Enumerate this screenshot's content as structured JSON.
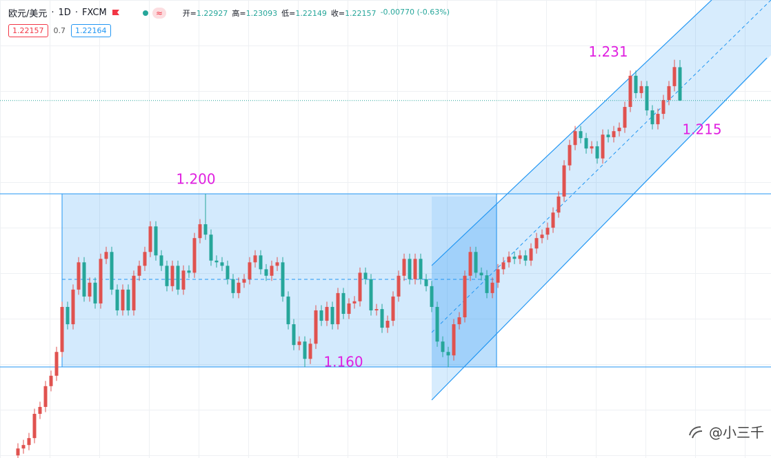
{
  "header": {
    "title": "欧元/美元",
    "interval": "1D",
    "source": "FXCM",
    "ohlc": [
      {
        "label": "开=",
        "value": "1.22927"
      },
      {
        "label": "高=",
        "value": "1.23093"
      },
      {
        "label": "低=",
        "value": "1.22149"
      },
      {
        "label": "收=",
        "value": "1.22157"
      }
    ],
    "change": "-0.00770 (-0.63%)",
    "sell": "1.22157",
    "spread": "0.7",
    "buy": "1.22164"
  },
  "watermark": "@小三千",
  "chart_data": {
    "type": "candlestick",
    "up_color": "#e0524f",
    "down_color": "#26a69a",
    "ylim": [
      1.139,
      1.2448
    ],
    "annotations": [
      {
        "value": 1.2,
        "label": "1.200"
      },
      {
        "value": 1.16,
        "label": "1.160"
      },
      {
        "value": 1.231,
        "label": "1.231"
      },
      {
        "value": 1.215,
        "label": "1.215"
      }
    ],
    "open": [
      1.1396,
      1.1412,
      1.142,
      1.1436,
      1.1492,
      1.1508,
      1.1556,
      1.158,
      1.1635,
      1.1739,
      1.1699,
      1.1779,
      1.1842,
      1.1763,
      1.1795,
      1.1747,
      1.185,
      1.1866,
      1.1779,
      1.1731,
      1.1779,
      1.1731,
      1.1811,
      1.1834,
      1.1866,
      1.1925,
      1.1858,
      1.1834,
      1.1787,
      1.1834,
      1.1779,
      1.1823,
      1.1818,
      1.1898,
      1.193,
      1.1906,
      1.1846,
      1.1842,
      1.1834,
      1.1803,
      1.1771,
      1.1795,
      1.1803,
      1.1842,
      1.1858,
      1.1826,
      1.1811,
      1.1834,
      1.1842,
      1.1763,
      1.1699,
      1.1651,
      1.1659,
      1.1619,
      1.1654,
      1.1731,
      1.1707,
      1.1739,
      1.1699,
      1.1771,
      1.1723,
      1.1747,
      1.1752,
      1.1818,
      1.1803,
      1.1731,
      1.1734,
      1.1691,
      1.1707,
      1.1763,
      1.1811,
      1.185,
      1.1803,
      1.185,
      1.1803,
      1.1787,
      1.1739,
      1.1659,
      1.1635,
      1.1627,
      1.1699,
      1.1715,
      1.1811,
      1.1866,
      1.1818,
      1.1812,
      1.1771,
      1.1795,
      1.1826,
      1.1842,
      1.1855,
      1.185,
      1.1858,
      1.1846,
      1.1874,
      1.1898,
      1.1906,
      1.1922,
      1.1957,
      1.1994,
      1.2066,
      1.2113,
      1.2145,
      1.2129,
      1.2105,
      1.211,
      1.2082,
      1.2137,
      1.2131,
      1.2145,
      1.2153,
      1.2201,
      1.2273,
      1.2233,
      1.2249,
      1.2193,
      1.2161,
      1.2185,
      1.2217,
      1.2249,
      1.22927
    ],
    "high": [
      1.1424,
      1.1432,
      1.1448,
      1.1504,
      1.152,
      1.1568,
      1.1592,
      1.1647,
      1.1751,
      1.1751,
      1.1791,
      1.1854,
      1.1854,
      1.1807,
      1.1807,
      1.1862,
      1.1878,
      1.1878,
      1.1791,
      1.1791,
      1.1791,
      1.1823,
      1.1846,
      1.1878,
      1.1937,
      1.1937,
      1.187,
      1.1846,
      1.1846,
      1.1846,
      1.1835,
      1.1835,
      1.191,
      1.1942,
      1.2,
      1.1918,
      1.1858,
      1.1854,
      1.1846,
      1.1815,
      1.1807,
      1.1815,
      1.1854,
      1.187,
      1.187,
      1.1838,
      1.1846,
      1.1854,
      1.1854,
      1.1775,
      1.1711,
      1.1671,
      1.1671,
      1.1666,
      1.1743,
      1.1743,
      1.1751,
      1.1751,
      1.1783,
      1.1783,
      1.1759,
      1.1764,
      1.183,
      1.183,
      1.1815,
      1.1746,
      1.1746,
      1.1719,
      1.1775,
      1.1823,
      1.1862,
      1.1862,
      1.1862,
      1.1862,
      1.1815,
      1.1799,
      1.1751,
      1.1671,
      1.1647,
      1.1711,
      1.1727,
      1.1823,
      1.1878,
      1.1878,
      1.183,
      1.1824,
      1.1807,
      1.1838,
      1.1854,
      1.1867,
      1.1867,
      1.187,
      1.187,
      1.1886,
      1.191,
      1.1918,
      1.1934,
      1.1969,
      1.2006,
      1.2078,
      1.2125,
      1.2157,
      1.2157,
      1.2141,
      1.2122,
      1.2122,
      1.2149,
      1.2149,
      1.2157,
      1.2165,
      1.2213,
      1.2285,
      1.2285,
      1.2261,
      1.2261,
      1.2205,
      1.2197,
      1.2229,
      1.2261,
      1.231,
      1.23093
    ],
    "low": [
      1.1384,
      1.14,
      1.1408,
      1.1424,
      1.148,
      1.1496,
      1.1544,
      1.1568,
      1.1623,
      1.1687,
      1.1687,
      1.1767,
      1.1751,
      1.1751,
      1.1735,
      1.1735,
      1.1838,
      1.1767,
      1.1719,
      1.1719,
      1.1719,
      1.1719,
      1.1799,
      1.1822,
      1.1854,
      1.1846,
      1.1822,
      1.1775,
      1.1775,
      1.1767,
      1.1767,
      1.1806,
      1.1806,
      1.1886,
      1.1894,
      1.1834,
      1.183,
      1.1822,
      1.1791,
      1.1759,
      1.1759,
      1.1783,
      1.1791,
      1.183,
      1.1814,
      1.1799,
      1.1799,
      1.1822,
      1.1751,
      1.1687,
      1.1639,
      1.1639,
      1.16,
      1.1607,
      1.1642,
      1.1695,
      1.1695,
      1.1687,
      1.1687,
      1.1711,
      1.1711,
      1.1735,
      1.174,
      1.1791,
      1.1719,
      1.1719,
      1.1679,
      1.1679,
      1.1695,
      1.1751,
      1.1799,
      1.1791,
      1.1791,
      1.1791,
      1.1775,
      1.1727,
      1.1647,
      1.1623,
      1.16,
      1.1615,
      1.1687,
      1.1703,
      1.1799,
      1.1806,
      1.18,
      1.1759,
      1.1759,
      1.1783,
      1.1814,
      1.183,
      1.1838,
      1.1838,
      1.1834,
      1.1834,
      1.1862,
      1.1886,
      1.1894,
      1.191,
      1.1945,
      1.1982,
      1.2054,
      1.2101,
      1.2117,
      1.2093,
      1.2093,
      1.207,
      1.207,
      1.2119,
      1.2119,
      1.2133,
      1.2141,
      1.2189,
      1.2221,
      1.2221,
      1.2181,
      1.2149,
      1.2149,
      1.2173,
      1.2205,
      1.2237,
      1.22149
    ],
    "close": [
      1.1412,
      1.142,
      1.1436,
      1.1492,
      1.1508,
      1.1556,
      1.158,
      1.1635,
      1.1739,
      1.1699,
      1.1779,
      1.1842,
      1.1763,
      1.1795,
      1.1747,
      1.185,
      1.1866,
      1.1779,
      1.1731,
      1.1779,
      1.1731,
      1.1811,
      1.1834,
      1.1866,
      1.1925,
      1.1858,
      1.1834,
      1.1787,
      1.1834,
      1.1779,
      1.1823,
      1.1818,
      1.1898,
      1.193,
      1.1906,
      1.1846,
      1.1842,
      1.1834,
      1.1803,
      1.1771,
      1.1795,
      1.1803,
      1.1842,
      1.1858,
      1.1826,
      1.1811,
      1.1834,
      1.1842,
      1.1763,
      1.1699,
      1.1651,
      1.1659,
      1.1619,
      1.1654,
      1.1731,
      1.1707,
      1.1739,
      1.1699,
      1.1771,
      1.1723,
      1.1747,
      1.1752,
      1.1818,
      1.1803,
      1.1731,
      1.1734,
      1.1691,
      1.1707,
      1.1763,
      1.1811,
      1.185,
      1.1803,
      1.185,
      1.1803,
      1.1787,
      1.1739,
      1.1659,
      1.1635,
      1.1627,
      1.1699,
      1.1715,
      1.1811,
      1.1866,
      1.1818,
      1.1812,
      1.1771,
      1.1795,
      1.1826,
      1.1842,
      1.1855,
      1.185,
      1.1858,
      1.1846,
      1.1874,
      1.1898,
      1.1906,
      1.1922,
      1.1957,
      1.1994,
      1.2066,
      1.2113,
      1.2145,
      1.2129,
      1.2105,
      1.211,
      1.2082,
      1.2137,
      1.2131,
      1.2145,
      1.2153,
      1.2201,
      1.2273,
      1.2233,
      1.2249,
      1.2193,
      1.2161,
      1.2185,
      1.2217,
      1.2249,
      1.2293,
      1.22157
    ]
  }
}
